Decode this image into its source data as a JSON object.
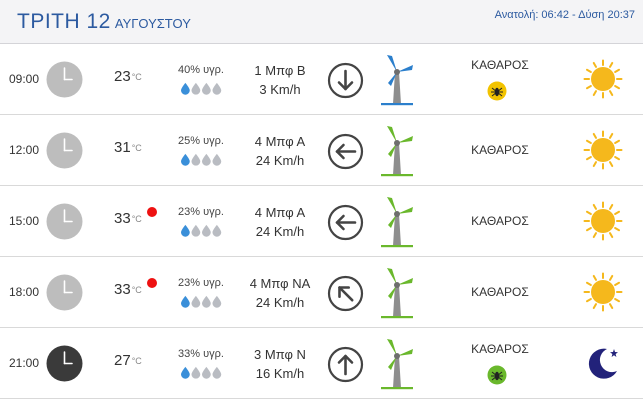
{
  "header": {
    "day": "ΤΡΙΤΗ 12",
    "month": "ΑΥΓΟΥΣΤΟΥ",
    "sunrise_label": "Ανατολή: 06:42",
    "separator": " - ",
    "sunset_label": "Δύση 20:37"
  },
  "colors": {
    "accent": "#2c5aa0",
    "alert": "#ee1111",
    "drop": "#3a8fd9",
    "sun": "#f5b81c",
    "moon": "#22227a",
    "turbine_blue": "#2b7fcc",
    "turbine_green": "#6ab82c"
  },
  "rows": [
    {
      "time": "09:00",
      "night": false,
      "temp": "23",
      "unit": "°C",
      "alert": false,
      "humidity": "40% υγρ.",
      "drops_filled": 1,
      "wind_bf": "1 Μπφ Β",
      "wind_kmh": "3 Km/h",
      "arrow_icon": "arrow-down-icon",
      "turbine": "blue",
      "condition": "ΚΑΘΑΡΟΣ",
      "insect": true,
      "insect_color": "#f2c300",
      "weather_icon": "sun-icon"
    },
    {
      "time": "12:00",
      "night": false,
      "temp": "31",
      "unit": "°C",
      "alert": false,
      "humidity": "25% υγρ.",
      "drops_filled": 1,
      "wind_bf": "4 Μπφ Α",
      "wind_kmh": "24 Km/h",
      "arrow_icon": "arrow-left-icon",
      "turbine": "green",
      "condition": "ΚΑΘΑΡΟΣ",
      "insect": false,
      "weather_icon": "sun-icon"
    },
    {
      "time": "15:00",
      "night": false,
      "temp": "33",
      "unit": "°C",
      "alert": true,
      "humidity": "23% υγρ.",
      "drops_filled": 1,
      "wind_bf": "4 Μπφ Α",
      "wind_kmh": "24 Km/h",
      "arrow_icon": "arrow-left-icon",
      "turbine": "green",
      "condition": "ΚΑΘΑΡΟΣ",
      "insect": false,
      "weather_icon": "sun-icon"
    },
    {
      "time": "18:00",
      "night": false,
      "temp": "33",
      "unit": "°C",
      "alert": true,
      "humidity": "23% υγρ.",
      "drops_filled": 1,
      "wind_bf": "4 Μπφ ΝΑ",
      "wind_kmh": "24 Km/h",
      "arrow_icon": "arrow-up-left-icon",
      "turbine": "green",
      "condition": "ΚΑΘΑΡΟΣ",
      "insect": false,
      "weather_icon": "sun-icon"
    },
    {
      "time": "21:00",
      "night": true,
      "temp": "27",
      "unit": "°C",
      "alert": false,
      "humidity": "33% υγρ.",
      "drops_filled": 1,
      "wind_bf": "3 Μπφ Ν",
      "wind_kmh": "16 Km/h",
      "arrow_icon": "arrow-up-icon",
      "turbine": "green",
      "condition": "ΚΑΘΑΡΟΣ",
      "insect": true,
      "insect_color": "#6ab82c",
      "weather_icon": "moon-icon"
    }
  ]
}
